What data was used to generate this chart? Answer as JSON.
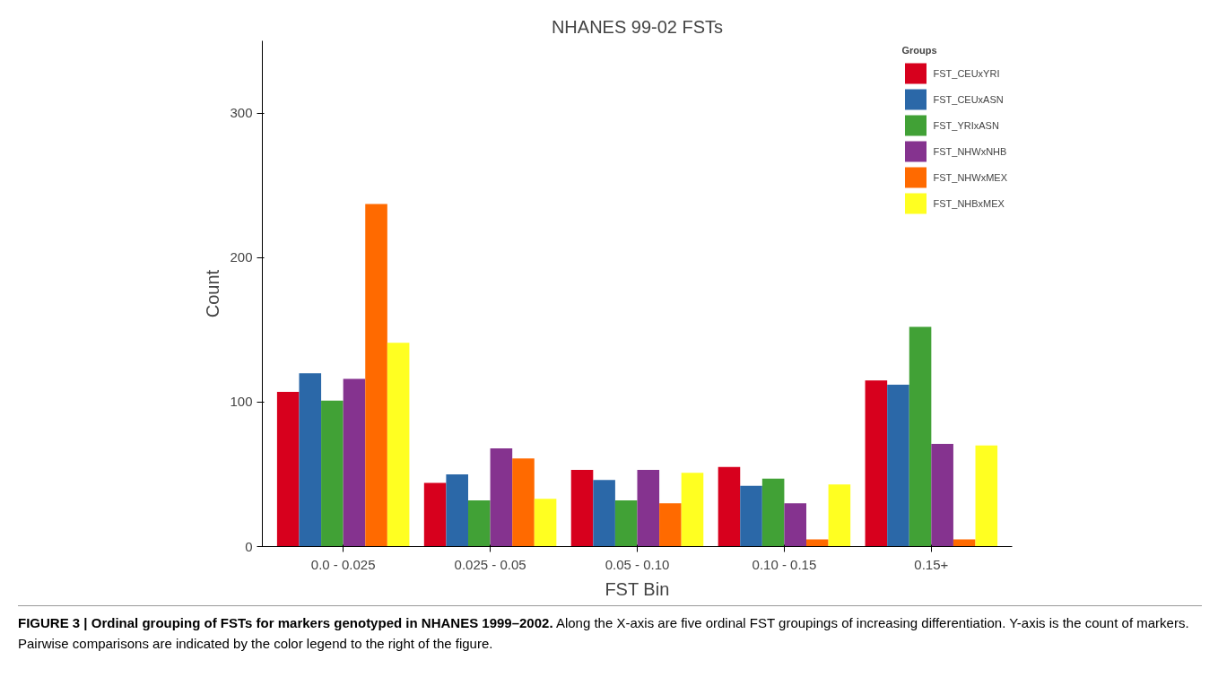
{
  "chart_data": {
    "type": "bar",
    "title": "NHANES 99-02 FSTs",
    "xlabel": "FST Bin",
    "ylabel": "Count",
    "legend_title": "Groups",
    "legend": "top right",
    "grid": false,
    "categories": [
      "0.0 - 0.025",
      "0.025 - 0.05",
      "0.05 - 0.10",
      "0.10 - 0.15",
      "0.15+"
    ],
    "ylim": [
      0,
      350
    ],
    "yticks": [
      0,
      100,
      200,
      300
    ],
    "series": [
      {
        "name": "FST_CEUxYRI",
        "color": "#d7001d",
        "values": [
          107,
          44,
          53,
          55,
          115
        ]
      },
      {
        "name": "FST_CEUxASN",
        "color": "#2b68a8",
        "values": [
          120,
          50,
          46,
          42,
          112
        ]
      },
      {
        "name": "FST_YRIxASN",
        "color": "#41a136",
        "values": [
          101,
          32,
          32,
          47,
          152
        ]
      },
      {
        "name": "FST_NHWxNHB",
        "color": "#85338f",
        "values": [
          116,
          68,
          53,
          30,
          71
        ]
      },
      {
        "name": "FST_NHWxMEX",
        "color": "#ff6a00",
        "values": [
          237,
          61,
          30,
          5,
          5
        ]
      },
      {
        "name": "FST_NHBxMEX",
        "color": "#ffff21",
        "values": [
          141,
          33,
          51,
          43,
          70
        ]
      }
    ],
    "annotations": [
      "FIGURE 3 | Ordinal grouping of FSTs for markers genotyped in NHANES 1999–2002.",
      "Along the X-axis are five ordinal FST groupings of increasing differentiation. Y-axis is the count of markers. Pairwise comparisons are indicated by the color legend to the right of the figure."
    ]
  }
}
